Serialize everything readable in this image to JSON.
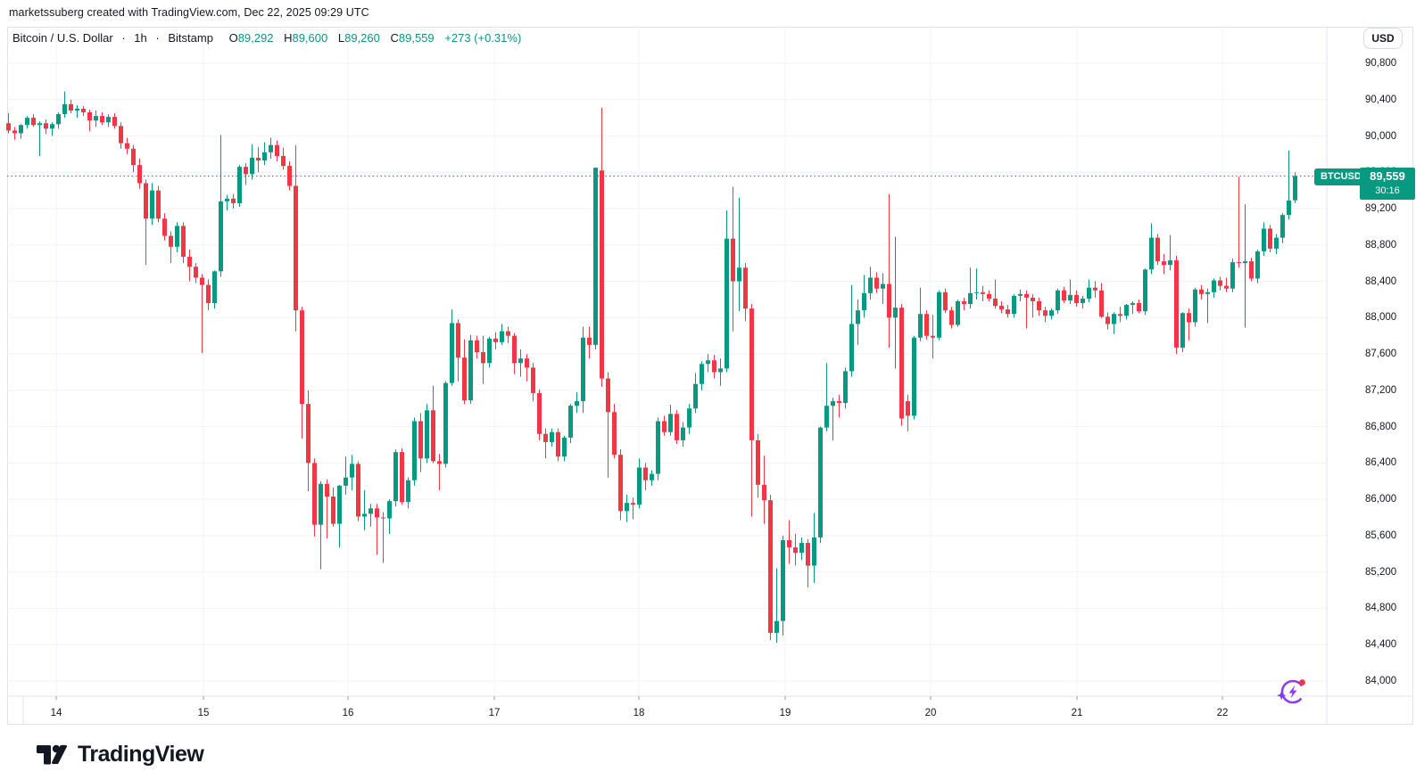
{
  "attribution": "marketssuberg created with TradingView.com, Dec 22, 2025 09:29 UTC",
  "header": {
    "symbol": "Bitcoin / U.S. Dollar",
    "sep1": "·",
    "interval": "1h",
    "sep2": "·",
    "exchange": "Bitstamp",
    "o_label": "O",
    "o": "89,292",
    "h_label": "H",
    "h": "89,600",
    "l_label": "L",
    "l": "89,260",
    "c_label": "C",
    "c": "89,559",
    "change": "+273 (+0.31%)"
  },
  "toolbar": {
    "currency_label": "USD"
  },
  "price_label": {
    "symbol": "BTCUSD",
    "price": "89,559",
    "countdown": "30:16"
  },
  "logo": {
    "text": "TradingView"
  },
  "icons": {
    "boost": "boost-rocket-circle",
    "bolt": "lightning-bolt",
    "sparkle": "✦",
    "dot": "notification-dot"
  },
  "colors": {
    "up": "#089981",
    "down": "#f23645",
    "grid": "#f0f3fa",
    "border": "#e0e3eb",
    "text": "#131722",
    "muted": "#787b86",
    "price_line": "#089981",
    "label_bg": "#089981",
    "accent_purple": "#8b3dff",
    "dot_red": "#f23645",
    "tick": "#9598a1"
  },
  "chart_data": {
    "type": "candlestick",
    "title": "Bitcoin / U.S. Dollar · 1h · Bitstamp",
    "legend_position": "top-left",
    "grid": true,
    "current_price": 89559,
    "y_axis": {
      "min": 84000,
      "max": 90800,
      "tick_step": 400,
      "tick_values": [
        90800,
        90400,
        90000,
        89600,
        89200,
        88800,
        88400,
        88000,
        87600,
        87200,
        86800,
        86400,
        86000,
        85600,
        85200,
        84800,
        84400,
        84000
      ],
      "tick_labels": [
        "90,800",
        "90,400",
        "90,000",
        "89,600",
        "89,200",
        "88,800",
        "88,400",
        "88,000",
        "87,600",
        "87,200",
        "86,800",
        "86,400",
        "86,000",
        "85,600",
        "85,200",
        "84,800",
        "84,400",
        "84,000"
      ]
    },
    "x_ticks": [
      {
        "label": "14",
        "x": 63
      },
      {
        "label": "15",
        "x": 228
      },
      {
        "label": "16",
        "x": 390
      },
      {
        "label": "17",
        "x": 554
      },
      {
        "label": "18",
        "x": 716
      },
      {
        "label": "19",
        "x": 880
      },
      {
        "label": "20",
        "x": 1043
      },
      {
        "label": "21",
        "x": 1207
      },
      {
        "label": "22",
        "x": 1370
      }
    ],
    "candles": [
      [
        90140,
        90250,
        90030,
        90060
      ],
      [
        90060,
        90100,
        89960,
        90030
      ],
      [
        90030,
        90130,
        89970,
        90120
      ],
      [
        90120,
        90220,
        90080,
        90200
      ],
      [
        90200,
        90240,
        90100,
        90120
      ],
      [
        90120,
        90160,
        89780,
        90140
      ],
      [
        90140,
        90180,
        90020,
        90080
      ],
      [
        90080,
        90150,
        90000,
        90130
      ],
      [
        90130,
        90260,
        90080,
        90240
      ],
      [
        90240,
        90490,
        90200,
        90350
      ],
      [
        90350,
        90400,
        90250,
        90280
      ],
      [
        90280,
        90340,
        90200,
        90300
      ],
      [
        90300,
        90330,
        90220,
        90260
      ],
      [
        90260,
        90290,
        90050,
        90170
      ],
      [
        90170,
        90280,
        90100,
        90220
      ],
      [
        90220,
        90260,
        90120,
        90150
      ],
      [
        90150,
        90240,
        90100,
        90210
      ],
      [
        90210,
        90250,
        90080,
        90110
      ],
      [
        90110,
        90150,
        89860,
        89920
      ],
      [
        89920,
        89980,
        89800,
        89860
      ],
      [
        89860,
        89900,
        89600,
        89680
      ],
      [
        89680,
        89750,
        89420,
        89480
      ],
      [
        89480,
        89520,
        88580,
        89090
      ],
      [
        89090,
        89480,
        89020,
        89400
      ],
      [
        89400,
        89450,
        89050,
        89090
      ],
      [
        89090,
        89150,
        88850,
        88900
      ],
      [
        88900,
        88950,
        88600,
        88780
      ],
      [
        88780,
        89050,
        88720,
        89010
      ],
      [
        89010,
        89050,
        88600,
        88670
      ],
      [
        88670,
        88750,
        88400,
        88560
      ],
      [
        88560,
        88600,
        88380,
        88440
      ],
      [
        88440,
        88480,
        87610,
        88360
      ],
      [
        88360,
        88420,
        88080,
        88160
      ],
      [
        88160,
        88520,
        88100,
        88510
      ],
      [
        88510,
        90010,
        88450,
        89280
      ],
      [
        89280,
        89350,
        89180,
        89310
      ],
      [
        89310,
        89360,
        89200,
        89260
      ],
      [
        89260,
        89680,
        89220,
        89660
      ],
      [
        89660,
        89700,
        89460,
        89580
      ],
      [
        89580,
        89910,
        89520,
        89760
      ],
      [
        89760,
        89880,
        89600,
        89730
      ],
      [
        89730,
        89930,
        89680,
        89820
      ],
      [
        89820,
        89980,
        89750,
        89900
      ],
      [
        89900,
        89950,
        89720,
        89780
      ],
      [
        89780,
        89870,
        89630,
        89670
      ],
      [
        89670,
        89720,
        89400,
        89450
      ],
      [
        89450,
        89900,
        87850,
        88080
      ],
      [
        88080,
        88120,
        86670,
        87050
      ],
      [
        87050,
        87200,
        86090,
        86400
      ],
      [
        86400,
        86450,
        85590,
        85720
      ],
      [
        85720,
        86200,
        85230,
        86170
      ],
      [
        86170,
        86220,
        85570,
        86030
      ],
      [
        86030,
        86130,
        85700,
        85730
      ],
      [
        85730,
        86160,
        85470,
        86150
      ],
      [
        86150,
        86470,
        86050,
        86240
      ],
      [
        86240,
        86490,
        86100,
        86390
      ],
      [
        86390,
        86420,
        85760,
        85810
      ],
      [
        85810,
        86100,
        85660,
        85840
      ],
      [
        85840,
        85950,
        85700,
        85900
      ],
      [
        85900,
        85950,
        85390,
        85800
      ],
      [
        85800,
        85860,
        85300,
        85790
      ],
      [
        85790,
        86000,
        85620,
        85980
      ],
      [
        85980,
        86550,
        85920,
        86520
      ],
      [
        86520,
        86560,
        85940,
        85970
      ],
      [
        85970,
        86240,
        85900,
        86210
      ],
      [
        86210,
        86900,
        86150,
        86860
      ],
      [
        86860,
        86950,
        86300,
        86450
      ],
      [
        86450,
        87050,
        86400,
        86980
      ],
      [
        86980,
        87250,
        86400,
        86420
      ],
      [
        86420,
        86500,
        86100,
        86390
      ],
      [
        86390,
        87300,
        86350,
        87280
      ],
      [
        87280,
        88090,
        87250,
        87940
      ],
      [
        87940,
        87980,
        87300,
        87560
      ],
      [
        87560,
        87760,
        87050,
        87090
      ],
      [
        87090,
        87810,
        87050,
        87750
      ],
      [
        87750,
        87800,
        87550,
        87620
      ],
      [
        87620,
        87800,
        87270,
        87500
      ],
      [
        87500,
        87790,
        87450,
        87770
      ],
      [
        87770,
        87840,
        87650,
        87730
      ],
      [
        87730,
        87930,
        87700,
        87850
      ],
      [
        87850,
        87900,
        87720,
        87800
      ],
      [
        87800,
        87830,
        87380,
        87500
      ],
      [
        87500,
        87650,
        87350,
        87550
      ],
      [
        87550,
        87600,
        87300,
        87450
      ],
      [
        87450,
        87500,
        87080,
        87170
      ],
      [
        87170,
        87210,
        86650,
        86720
      ],
      [
        86720,
        86780,
        86450,
        86630
      ],
      [
        86630,
        86780,
        86580,
        86740
      ],
      [
        86740,
        86780,
        86420,
        86470
      ],
      [
        86470,
        86700,
        86420,
        86680
      ],
      [
        86680,
        87050,
        86620,
        87030
      ],
      [
        87030,
        87180,
        86950,
        87080
      ],
      [
        87080,
        87900,
        86950,
        87780
      ],
      [
        87780,
        87900,
        87550,
        87700
      ],
      [
        87700,
        89650,
        87650,
        89650
      ],
      [
        89620,
        90310,
        87240,
        87330
      ],
      [
        87330,
        87400,
        86240,
        86960
      ],
      [
        86960,
        87050,
        86450,
        86490
      ],
      [
        86490,
        86550,
        85770,
        85870
      ],
      [
        85870,
        86050,
        85750,
        85960
      ],
      [
        85960,
        86020,
        85780,
        85940
      ],
      [
        85940,
        86450,
        85900,
        86350
      ],
      [
        86350,
        86400,
        86100,
        86210
      ],
      [
        86210,
        86320,
        86150,
        86280
      ],
      [
        86280,
        86900,
        86210,
        86860
      ],
      [
        86860,
        86920,
        86700,
        86740
      ],
      [
        86740,
        87040,
        86700,
        86940
      ],
      [
        86940,
        86980,
        86610,
        86650
      ],
      [
        86650,
        86850,
        86580,
        86790
      ],
      [
        86790,
        87050,
        86720,
        87000
      ],
      [
        87000,
        87390,
        86950,
        87270
      ],
      [
        87270,
        87520,
        87200,
        87490
      ],
      [
        87490,
        87600,
        87400,
        87530
      ],
      [
        87530,
        87590,
        87330,
        87400
      ],
      [
        87400,
        87550,
        87250,
        87440
      ],
      [
        87440,
        89180,
        87400,
        88870
      ],
      [
        88870,
        89440,
        87850,
        88400
      ],
      [
        88400,
        89320,
        88070,
        88550
      ],
      [
        88550,
        88600,
        87960,
        88100
      ],
      [
        88100,
        88150,
        85810,
        86650
      ],
      [
        86650,
        86720,
        86020,
        86160
      ],
      [
        86160,
        86480,
        85730,
        85990
      ],
      [
        85990,
        86050,
        84450,
        84530
      ],
      [
        84530,
        85240,
        84420,
        84660
      ],
      [
        84660,
        85600,
        84500,
        85550
      ],
      [
        85550,
        85770,
        85290,
        85470
      ],
      [
        85470,
        85620,
        85270,
        85410
      ],
      [
        85410,
        85580,
        85330,
        85520
      ],
      [
        85520,
        85560,
        85030,
        85270
      ],
      [
        85270,
        85850,
        85080,
        85580
      ],
      [
        85580,
        86800,
        85520,
        86790
      ],
      [
        86790,
        87500,
        86750,
        87030
      ],
      [
        87030,
        87120,
        86650,
        87080
      ],
      [
        87080,
        87150,
        86900,
        87060
      ],
      [
        87060,
        87450,
        87000,
        87410
      ],
      [
        87410,
        88360,
        87350,
        87930
      ],
      [
        87930,
        88200,
        87700,
        88080
      ],
      [
        88080,
        88470,
        88000,
        88270
      ],
      [
        88270,
        88560,
        88200,
        88440
      ],
      [
        88440,
        88500,
        88270,
        88320
      ],
      [
        88320,
        88490,
        88150,
        88370
      ],
      [
        88370,
        89360,
        87670,
        88000
      ],
      [
        88000,
        88890,
        87440,
        88110
      ],
      [
        88110,
        88150,
        86810,
        86890
      ],
      [
        87080,
        87150,
        86750,
        86920
      ],
      [
        86920,
        87800,
        86880,
        87780
      ],
      [
        87780,
        88330,
        87740,
        88040
      ],
      [
        88040,
        88080,
        87760,
        87800
      ],
      [
        87800,
        88030,
        87550,
        87780
      ],
      [
        87780,
        88300,
        87750,
        88280
      ],
      [
        88280,
        88320,
        88050,
        88080
      ],
      [
        88080,
        88120,
        87880,
        87920
      ],
      [
        87920,
        88200,
        87900,
        88180
      ],
      [
        88180,
        88220,
        88080,
        88150
      ],
      [
        88150,
        88550,
        88100,
        88270
      ],
      [
        88270,
        88540,
        88200,
        88280
      ],
      [
        88280,
        88350,
        88180,
        88260
      ],
      [
        88260,
        88300,
        88180,
        88210
      ],
      [
        88210,
        88420,
        88100,
        88130
      ],
      [
        88130,
        88180,
        88050,
        88090
      ],
      [
        88090,
        88140,
        88000,
        88040
      ],
      [
        88040,
        88260,
        88000,
        88240
      ],
      [
        88240,
        88310,
        88180,
        88260
      ],
      [
        88260,
        88300,
        87880,
        88220
      ],
      [
        88220,
        88260,
        88000,
        88180
      ],
      [
        88180,
        88220,
        88020,
        88080
      ],
      [
        88080,
        88120,
        87950,
        88020
      ],
      [
        88020,
        88100,
        87980,
        88080
      ],
      [
        88080,
        88320,
        88040,
        88300
      ],
      [
        88300,
        88340,
        88160,
        88190
      ],
      [
        88190,
        88420,
        88150,
        88250
      ],
      [
        88250,
        88300,
        88120,
        88160
      ],
      [
        88160,
        88240,
        88100,
        88210
      ],
      [
        88210,
        88420,
        88170,
        88330
      ],
      [
        88330,
        88400,
        88220,
        88300
      ],
      [
        88300,
        88380,
        88000,
        88010
      ],
      [
        88010,
        88060,
        87870,
        87930
      ],
      [
        87930,
        88060,
        87820,
        88040
      ],
      [
        88040,
        88120,
        87950,
        88020
      ],
      [
        88020,
        88150,
        87980,
        88140
      ],
      [
        88140,
        88180,
        88040,
        88160
      ],
      [
        88160,
        88200,
        88050,
        88070
      ],
      [
        88070,
        88540,
        88030,
        88530
      ],
      [
        88530,
        89040,
        88480,
        88880
      ],
      [
        88880,
        88920,
        88580,
        88620
      ],
      [
        88620,
        88700,
        88480,
        88580
      ],
      [
        88580,
        88910,
        88520,
        88630
      ],
      [
        88630,
        88680,
        87600,
        87670
      ],
      [
        87670,
        88060,
        87620,
        88050
      ],
      [
        88050,
        88100,
        87750,
        87950
      ],
      [
        87950,
        88330,
        87900,
        88310
      ],
      [
        88310,
        88360,
        88200,
        88260
      ],
      [
        88260,
        88320,
        87940,
        88280
      ],
      [
        88280,
        88430,
        88220,
        88410
      ],
      [
        88410,
        88450,
        88300,
        88350
      ],
      [
        88350,
        88440,
        88280,
        88320
      ],
      [
        88320,
        88650,
        88280,
        88610
      ],
      [
        88610,
        89550,
        88550,
        88600
      ],
      [
        88600,
        89250,
        87890,
        88620
      ],
      [
        88620,
        88660,
        88400,
        88430
      ],
      [
        88430,
        88750,
        88380,
        88730
      ],
      [
        88730,
        89050,
        88680,
        88980
      ],
      [
        88980,
        89020,
        88720,
        88760
      ],
      [
        88760,
        88920,
        88700,
        88880
      ],
      [
        88880,
        89150,
        88820,
        89130
      ],
      [
        89130,
        89840,
        89080,
        89290
      ],
      [
        89292,
        89600,
        89260,
        89559
      ]
    ]
  }
}
